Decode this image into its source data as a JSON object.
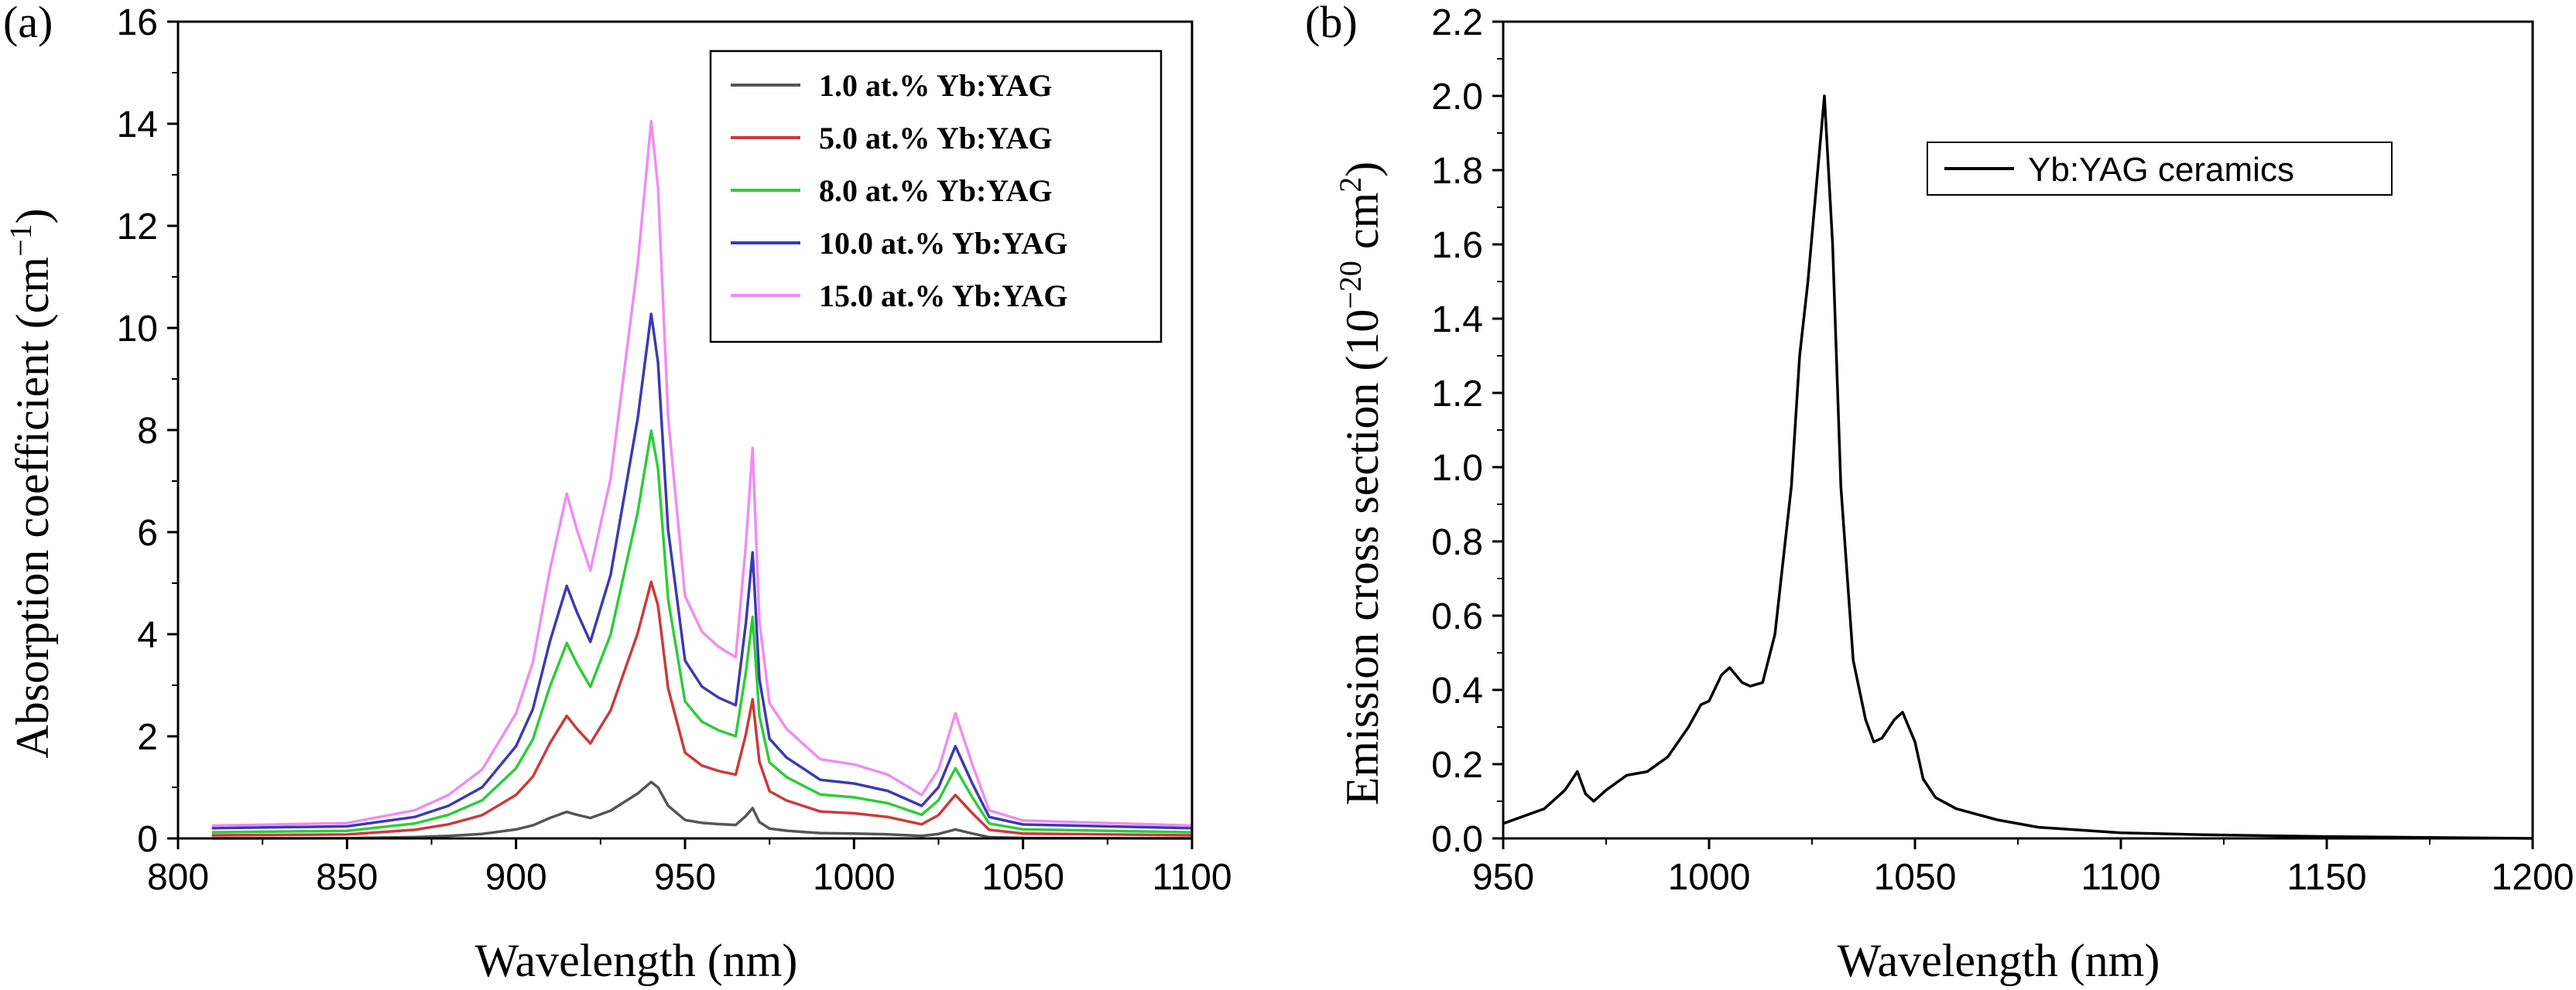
{
  "chart_data": [
    {
      "panel_label": "(a)",
      "type": "line",
      "xlabel": "Wavelength (nm)",
      "ylabel": "Absorption coefficient (cm",
      "ylabel_sup": "−1",
      "ylabel_end": ")",
      "xlim": [
        800,
        1100
      ],
      "ylim": [
        0,
        16
      ],
      "xticks": [
        "800",
        "850",
        "900",
        "950",
        "1000",
        "1050",
        "1100"
      ],
      "yticks": [
        "0",
        "2",
        "4",
        "6",
        "8",
        "10",
        "12",
        "14",
        "16"
      ],
      "legend_position": "top-right",
      "series": [
        {
          "name": "1.0 at.% Yb:YAG",
          "color": "#555555",
          "scale": 0.08,
          "offset": 0.0
        },
        {
          "name": "5.0 at.% Yb:YAG",
          "color": "#cc3a3a",
          "scale": 0.36,
          "offset": 0.06
        },
        {
          "name": "8.0 at.% Yb:YAG",
          "color": "#2ecc3a",
          "scale": 0.57,
          "offset": 0.12
        },
        {
          "name": "10.0 at.% Yb:YAG",
          "color": "#3d3ab0",
          "scale": 0.73,
          "offset": 0.2
        },
        {
          "name": "15.0 at.% Yb:YAG",
          "color": "#f08cf2",
          "scale": 1.0,
          "offset": 0.25
        }
      ],
      "shape_x": [
        810,
        850,
        870,
        880,
        890,
        900,
        905,
        910,
        915,
        918,
        922,
        928,
        932,
        936,
        940,
        942,
        945,
        950,
        955,
        960,
        965,
        968,
        970,
        972,
        975,
        980,
        985,
        990,
        1000,
        1010,
        1020,
        1025,
        1030,
        1035,
        1040,
        1050,
        1100
      ],
      "shape_y": [
        0.0,
        0.05,
        0.3,
        0.6,
        1.1,
        2.2,
        3.2,
        5.0,
        6.5,
        5.8,
        5.0,
        6.8,
        8.9,
        11.0,
        13.8,
        12.5,
        8.0,
        4.5,
        3.8,
        3.5,
        3.3,
        5.5,
        7.4,
        4.0,
        2.4,
        1.9,
        1.6,
        1.3,
        1.2,
        1.0,
        0.6,
        1.1,
        2.2,
        1.2,
        0.3,
        0.1,
        0.0
      ]
    },
    {
      "panel_label": "(b)",
      "type": "line",
      "xlabel": "Wavelength (nm)",
      "ylabel": "Emission cross section (10",
      "ylabel_sup": "−20",
      "ylabel_end": " cm",
      "ylabel_sup2": "2",
      "ylabel_close": ")",
      "xlim": [
        950,
        1200
      ],
      "ylim": [
        0,
        2.2
      ],
      "xticks": [
        "950",
        "1000",
        "1050",
        "1100",
        "1150",
        "1200"
      ],
      "yticks": [
        "0.0",
        "0.2",
        "0.4",
        "0.6",
        "0.8",
        "1.0",
        "1.2",
        "1.4",
        "1.6",
        "1.8",
        "2.0",
        "2.2"
      ],
      "legend_position": "top-right",
      "series": [
        {
          "name": "Yb:YAG ceramics",
          "color": "#000000",
          "x": [
            950,
            955,
            960,
            965,
            968,
            970,
            972,
            975,
            980,
            985,
            990,
            995,
            998,
            1000,
            1003,
            1005,
            1008,
            1010,
            1013,
            1016,
            1020,
            1022,
            1024,
            1026,
            1028,
            1030,
            1032,
            1035,
            1038,
            1040,
            1042,
            1045,
            1047,
            1050,
            1052,
            1055,
            1060,
            1070,
            1080,
            1100,
            1120,
            1150,
            1200
          ],
          "y": [
            0.04,
            0.06,
            0.08,
            0.13,
            0.18,
            0.12,
            0.1,
            0.13,
            0.17,
            0.18,
            0.22,
            0.3,
            0.36,
            0.37,
            0.44,
            0.46,
            0.42,
            0.41,
            0.42,
            0.55,
            0.95,
            1.3,
            1.5,
            1.75,
            2.0,
            1.6,
            0.95,
            0.48,
            0.32,
            0.26,
            0.27,
            0.32,
            0.34,
            0.26,
            0.16,
            0.11,
            0.08,
            0.05,
            0.03,
            0.015,
            0.01,
            0.005,
            0.0
          ]
        }
      ]
    }
  ]
}
